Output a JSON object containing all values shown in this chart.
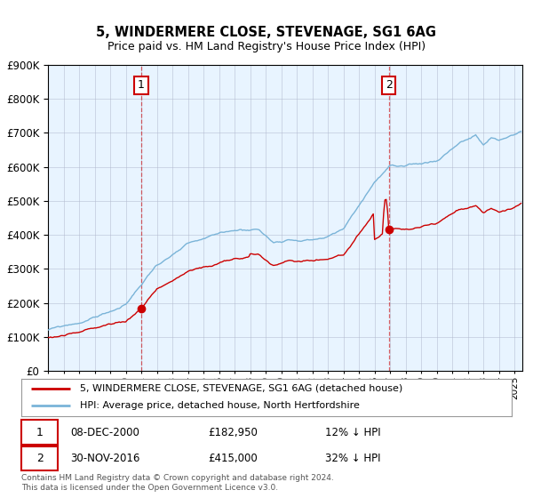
{
  "title": "5, WINDERMERE CLOSE, STEVENAGE, SG1 6AG",
  "subtitle": "Price paid vs. HM Land Registry's House Price Index (HPI)",
  "legend_line1": "5, WINDERMERE CLOSE, STEVENAGE, SG1 6AG (detached house)",
  "legend_line2": "HPI: Average price, detached house, North Hertfordshire",
  "annotation1_date": "08-DEC-2000",
  "annotation1_price": "£182,950",
  "annotation1_hpi": "12% ↓ HPI",
  "annotation2_date": "30-NOV-2016",
  "annotation2_price": "£415,000",
  "annotation2_hpi": "32% ↓ HPI",
  "footer": "Contains HM Land Registry data © Crown copyright and database right 2024.\nThis data is licensed under the Open Government Licence v3.0.",
  "hpi_color": "#7ab4d8",
  "price_color": "#cc0000",
  "bg_color": "#ddeeff",
  "chart_bg": "#e8f4ff",
  "ylim": [
    0,
    900000
  ],
  "sale1_year": 2001.0,
  "sale1_price": 182950,
  "sale2_year": 2016.92,
  "sale2_price": 415000
}
